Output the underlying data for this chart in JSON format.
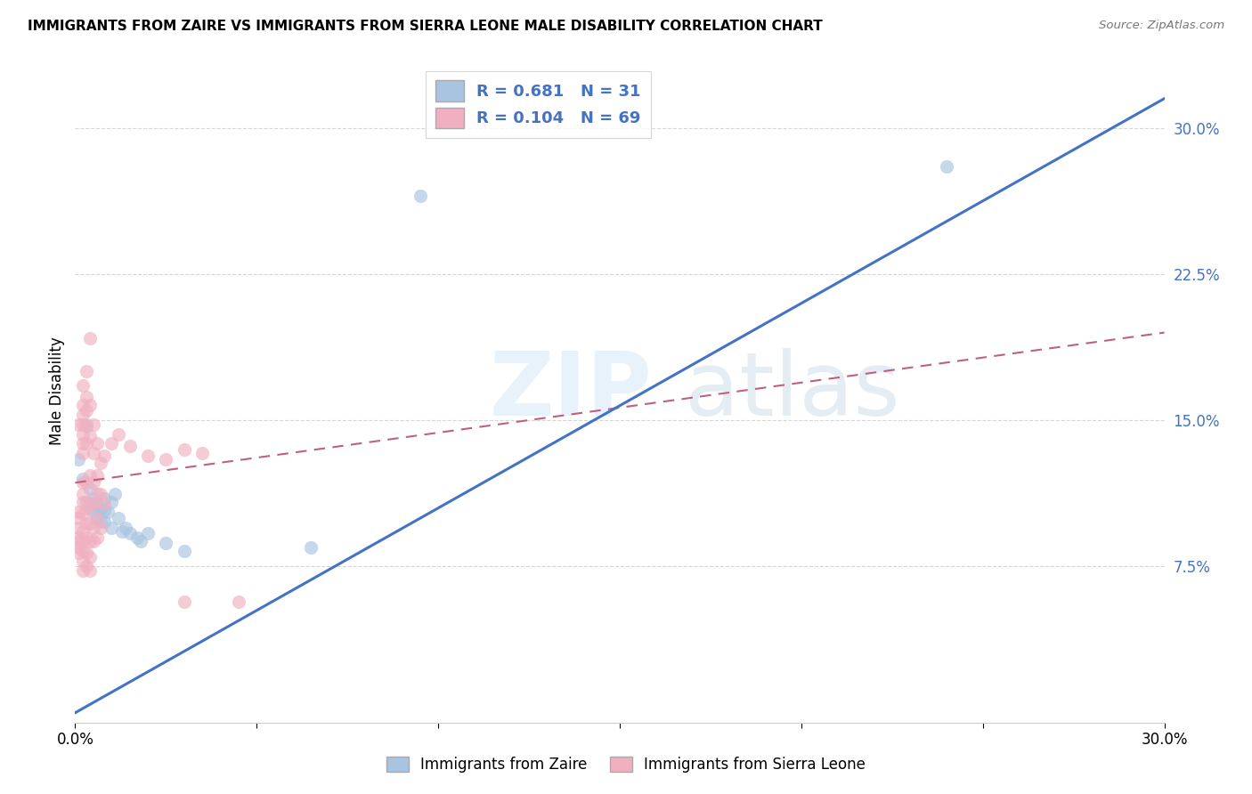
{
  "title": "IMMIGRANTS FROM ZAIRE VS IMMIGRANTS FROM SIERRA LEONE MALE DISABILITY CORRELATION CHART",
  "source": "Source: ZipAtlas.com",
  "ylabel": "Male Disability",
  "xlim": [
    0,
    0.3
  ],
  "ylim": [
    -0.005,
    0.335
  ],
  "zaire_color": "#a8c4e0",
  "sierra_color": "#f0b0c0",
  "zaire_edge_color": "#a8c4e0",
  "sierra_edge_color": "#f0b0c0",
  "zaire_line_color": "#4472c4",
  "sierra_line_color": "#c06080",
  "blue_line_x": [
    0.0,
    0.3
  ],
  "blue_line_y": [
    0.0,
    0.315
  ],
  "pink_line_x": [
    0.0,
    0.3
  ],
  "pink_line_y": [
    0.118,
    0.195
  ],
  "zaire_points": [
    [
      0.001,
      0.13
    ],
    [
      0.002,
      0.12
    ],
    [
      0.003,
      0.108
    ],
    [
      0.003,
      0.148
    ],
    [
      0.004,
      0.115
    ],
    [
      0.004,
      0.105
    ],
    [
      0.005,
      0.11
    ],
    [
      0.005,
      0.103
    ],
    [
      0.006,
      0.107
    ],
    [
      0.006,
      0.1
    ],
    [
      0.007,
      0.105
    ],
    [
      0.007,
      0.098
    ],
    [
      0.008,
      0.104
    ],
    [
      0.008,
      0.11
    ],
    [
      0.008,
      0.098
    ],
    [
      0.009,
      0.103
    ],
    [
      0.01,
      0.095
    ],
    [
      0.01,
      0.108
    ],
    [
      0.011,
      0.112
    ],
    [
      0.012,
      0.1
    ],
    [
      0.013,
      0.093
    ],
    [
      0.014,
      0.095
    ],
    [
      0.015,
      0.092
    ],
    [
      0.017,
      0.09
    ],
    [
      0.018,
      0.088
    ],
    [
      0.02,
      0.092
    ],
    [
      0.025,
      0.087
    ],
    [
      0.03,
      0.083
    ],
    [
      0.065,
      0.085
    ],
    [
      0.095,
      0.265
    ],
    [
      0.24,
      0.28
    ]
  ],
  "sierra_points": [
    [
      0.001,
      0.1
    ],
    [
      0.001,
      0.095
    ],
    [
      0.001,
      0.103
    ],
    [
      0.001,
      0.09
    ],
    [
      0.001,
      0.088
    ],
    [
      0.001,
      0.085
    ],
    [
      0.001,
      0.082
    ],
    [
      0.001,
      0.148
    ],
    [
      0.002,
      0.158
    ],
    [
      0.002,
      0.153
    ],
    [
      0.002,
      0.148
    ],
    [
      0.002,
      0.143
    ],
    [
      0.002,
      0.138
    ],
    [
      0.002,
      0.133
    ],
    [
      0.002,
      0.118
    ],
    [
      0.002,
      0.112
    ],
    [
      0.002,
      0.108
    ],
    [
      0.002,
      0.102
    ],
    [
      0.002,
      0.093
    ],
    [
      0.002,
      0.088
    ],
    [
      0.002,
      0.083
    ],
    [
      0.002,
      0.078
    ],
    [
      0.002,
      0.073
    ],
    [
      0.002,
      0.168
    ],
    [
      0.003,
      0.175
    ],
    [
      0.003,
      0.162
    ],
    [
      0.003,
      0.155
    ],
    [
      0.003,
      0.147
    ],
    [
      0.003,
      0.138
    ],
    [
      0.003,
      0.118
    ],
    [
      0.003,
      0.105
    ],
    [
      0.003,
      0.097
    ],
    [
      0.003,
      0.09
    ],
    [
      0.003,
      0.082
    ],
    [
      0.003,
      0.075
    ],
    [
      0.004,
      0.192
    ],
    [
      0.004,
      0.158
    ],
    [
      0.004,
      0.142
    ],
    [
      0.004,
      0.122
    ],
    [
      0.004,
      0.107
    ],
    [
      0.004,
      0.097
    ],
    [
      0.004,
      0.088
    ],
    [
      0.004,
      0.08
    ],
    [
      0.004,
      0.073
    ],
    [
      0.005,
      0.148
    ],
    [
      0.005,
      0.133
    ],
    [
      0.005,
      0.118
    ],
    [
      0.005,
      0.107
    ],
    [
      0.005,
      0.095
    ],
    [
      0.005,
      0.088
    ],
    [
      0.006,
      0.138
    ],
    [
      0.006,
      0.122
    ],
    [
      0.006,
      0.112
    ],
    [
      0.006,
      0.1
    ],
    [
      0.006,
      0.09
    ],
    [
      0.007,
      0.128
    ],
    [
      0.007,
      0.112
    ],
    [
      0.007,
      0.095
    ],
    [
      0.008,
      0.132
    ],
    [
      0.008,
      0.107
    ],
    [
      0.01,
      0.138
    ],
    [
      0.012,
      0.143
    ],
    [
      0.015,
      0.137
    ],
    [
      0.02,
      0.132
    ],
    [
      0.025,
      0.13
    ],
    [
      0.03,
      0.135
    ],
    [
      0.035,
      0.133
    ],
    [
      0.03,
      0.057
    ],
    [
      0.045,
      0.057
    ]
  ],
  "watermark_zip": "ZIP",
  "watermark_atlas": "atlas",
  "legend_label_zaire": "R = 0.681   N = 31",
  "legend_label_sierra": "R = 0.104   N = 69",
  "bottom_label_zaire": "Immigrants from Zaire",
  "bottom_label_sierra": "Immigrants from Sierra Leone",
  "grid_color": "#cccccc",
  "tick_color": "#4472c4",
  "title_fontsize": 11,
  "axis_tick_fontsize": 12,
  "legend_fontsize": 13,
  "scatter_size": 120,
  "scatter_alpha": 0.65
}
